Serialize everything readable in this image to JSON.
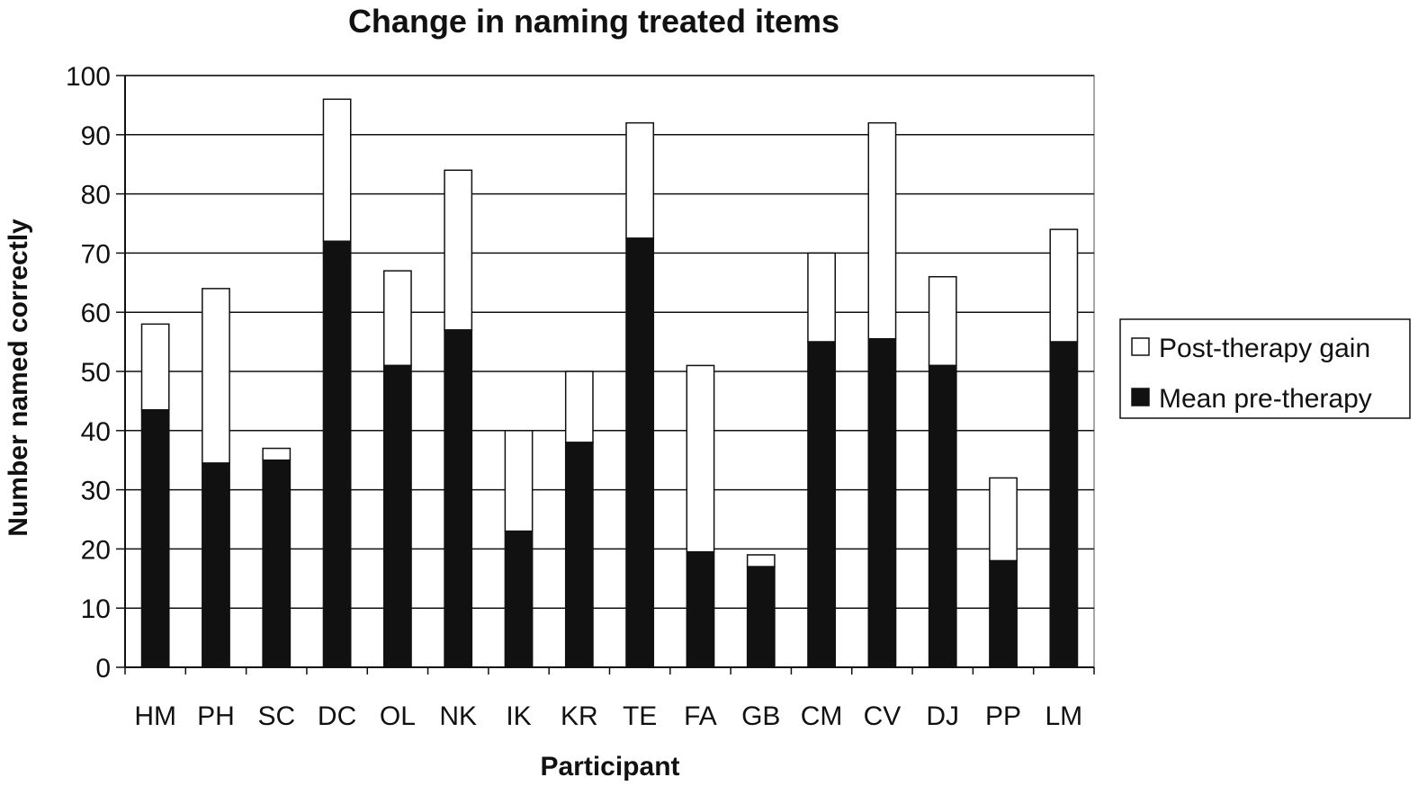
{
  "chart_data": {
    "type": "bar",
    "stacked": true,
    "title": "Change in naming treated items",
    "xlabel": "Participant",
    "ylabel": "Number named correctly",
    "ylim": [
      0,
      100
    ],
    "yticks": [
      0,
      10,
      20,
      30,
      40,
      50,
      60,
      70,
      80,
      90,
      100
    ],
    "grid": true,
    "legend_position": "right",
    "categories": [
      "HM",
      "PH",
      "SC",
      "DC",
      "OL",
      "NK",
      "IK",
      "KR",
      "TE",
      "FA",
      "GB",
      "CM",
      "CV",
      "DJ",
      "PP",
      "LM"
    ],
    "series": [
      {
        "name": "Mean pre-therapy",
        "color": "#111111",
        "values": [
          43.5,
          34.5,
          35,
          72,
          51,
          57,
          23,
          38,
          72.5,
          19.5,
          17,
          55,
          55.5,
          51,
          18,
          55
        ]
      },
      {
        "name": "Post-therapy gain",
        "color": "#ffffff",
        "values": [
          14.5,
          29.5,
          2,
          24,
          16,
          27,
          17,
          12,
          19.5,
          31.5,
          2,
          15,
          36.5,
          15,
          14,
          19
        ]
      }
    ],
    "legend": [
      "Post-therapy gain",
      "Mean pre-therapy"
    ]
  }
}
